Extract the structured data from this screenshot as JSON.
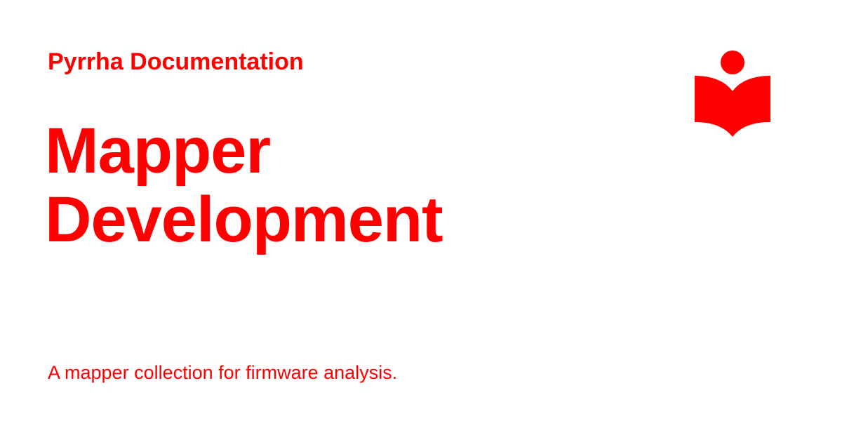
{
  "brand": {
    "accent_color": "#ff0000",
    "logo_icon": "reader-book-icon"
  },
  "header": {
    "site_name": "Pyrrha Documentation"
  },
  "main": {
    "title_lines": [
      "Mapper",
      "Development"
    ],
    "description": "A mapper collection for firmware analysis."
  }
}
